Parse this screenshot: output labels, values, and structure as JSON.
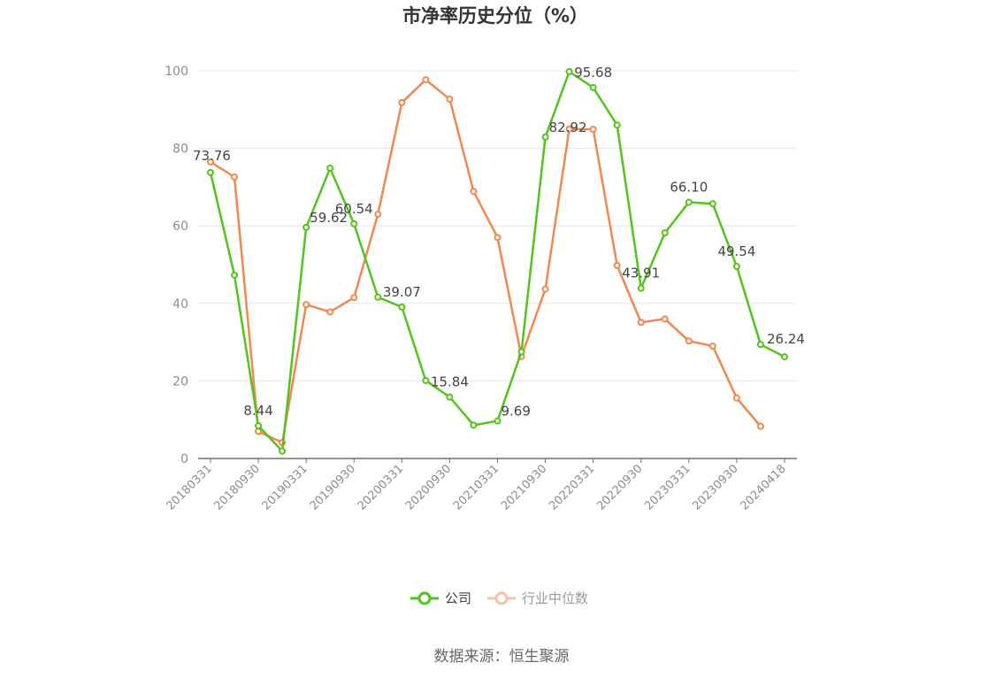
{
  "chart_data": {
    "type": "line",
    "title": "市净率历史分位（%）",
    "x": [
      "20180331",
      "20180630",
      "20180930",
      "20181231",
      "20190331",
      "20190630",
      "20190930",
      "20191231",
      "20200331",
      "20200630",
      "20200930",
      "20201231",
      "20210331",
      "20210630",
      "20210930",
      "20211231",
      "20220331",
      "20220630",
      "20220930",
      "20221231",
      "20230331",
      "20230630",
      "20230930",
      "20231231",
      "20240418"
    ],
    "x_tick_labels": [
      "20180331",
      "20180930",
      "20190331",
      "20190930",
      "20200331",
      "20200930",
      "20210331",
      "20210930",
      "20220331",
      "20220930",
      "20230331",
      "20230930",
      "20240418"
    ],
    "ylim": [
      0,
      100
    ],
    "y_ticks": [
      0,
      20,
      40,
      60,
      80,
      100
    ],
    "grid": true,
    "legend_position": "bottom",
    "series": [
      {
        "name": "公司",
        "color": "#52c41a",
        "values": [
          73.76,
          47.3,
          8.44,
          1.9,
          59.62,
          74.9,
          60.54,
          41.6,
          39.07,
          20.1,
          15.84,
          8.6,
          9.69,
          27.5,
          82.92,
          99.8,
          95.68,
          86.0,
          43.91,
          58.2,
          66.1,
          65.7,
          49.54,
          29.4,
          26.24
        ]
      },
      {
        "name": "行业中位数",
        "color": "#f0884f",
        "values": [
          76.5,
          72.6,
          7.0,
          4.1,
          39.7,
          37.8,
          41.5,
          63.0,
          91.8,
          97.7,
          92.7,
          68.9,
          57.0,
          26.3,
          43.7,
          85.0,
          84.9,
          49.8,
          35.1,
          36.0,
          30.3,
          29.0,
          15.6,
          8.3,
          null
        ]
      }
    ],
    "data_labels": [
      {
        "index": 0,
        "text": "73.76"
      },
      {
        "index": 2,
        "text": "8.44"
      },
      {
        "index": 4,
        "text": "59.62"
      },
      {
        "index": 6,
        "text": "60.54"
      },
      {
        "index": 8,
        "text": "39.07"
      },
      {
        "index": 10,
        "text": "15.84"
      },
      {
        "index": 12,
        "text": "9.69"
      },
      {
        "index": 14,
        "text": "82.92"
      },
      {
        "index": 16,
        "text": "95.68"
      },
      {
        "index": 18,
        "text": "43.91"
      },
      {
        "index": 20,
        "text": "66.10"
      },
      {
        "index": 22,
        "text": "49.54"
      },
      {
        "index": 24,
        "text": "26.24"
      }
    ]
  },
  "legend": {
    "company": "公司",
    "industry": "行业中位数"
  },
  "source": "数据来源：恒生聚源"
}
